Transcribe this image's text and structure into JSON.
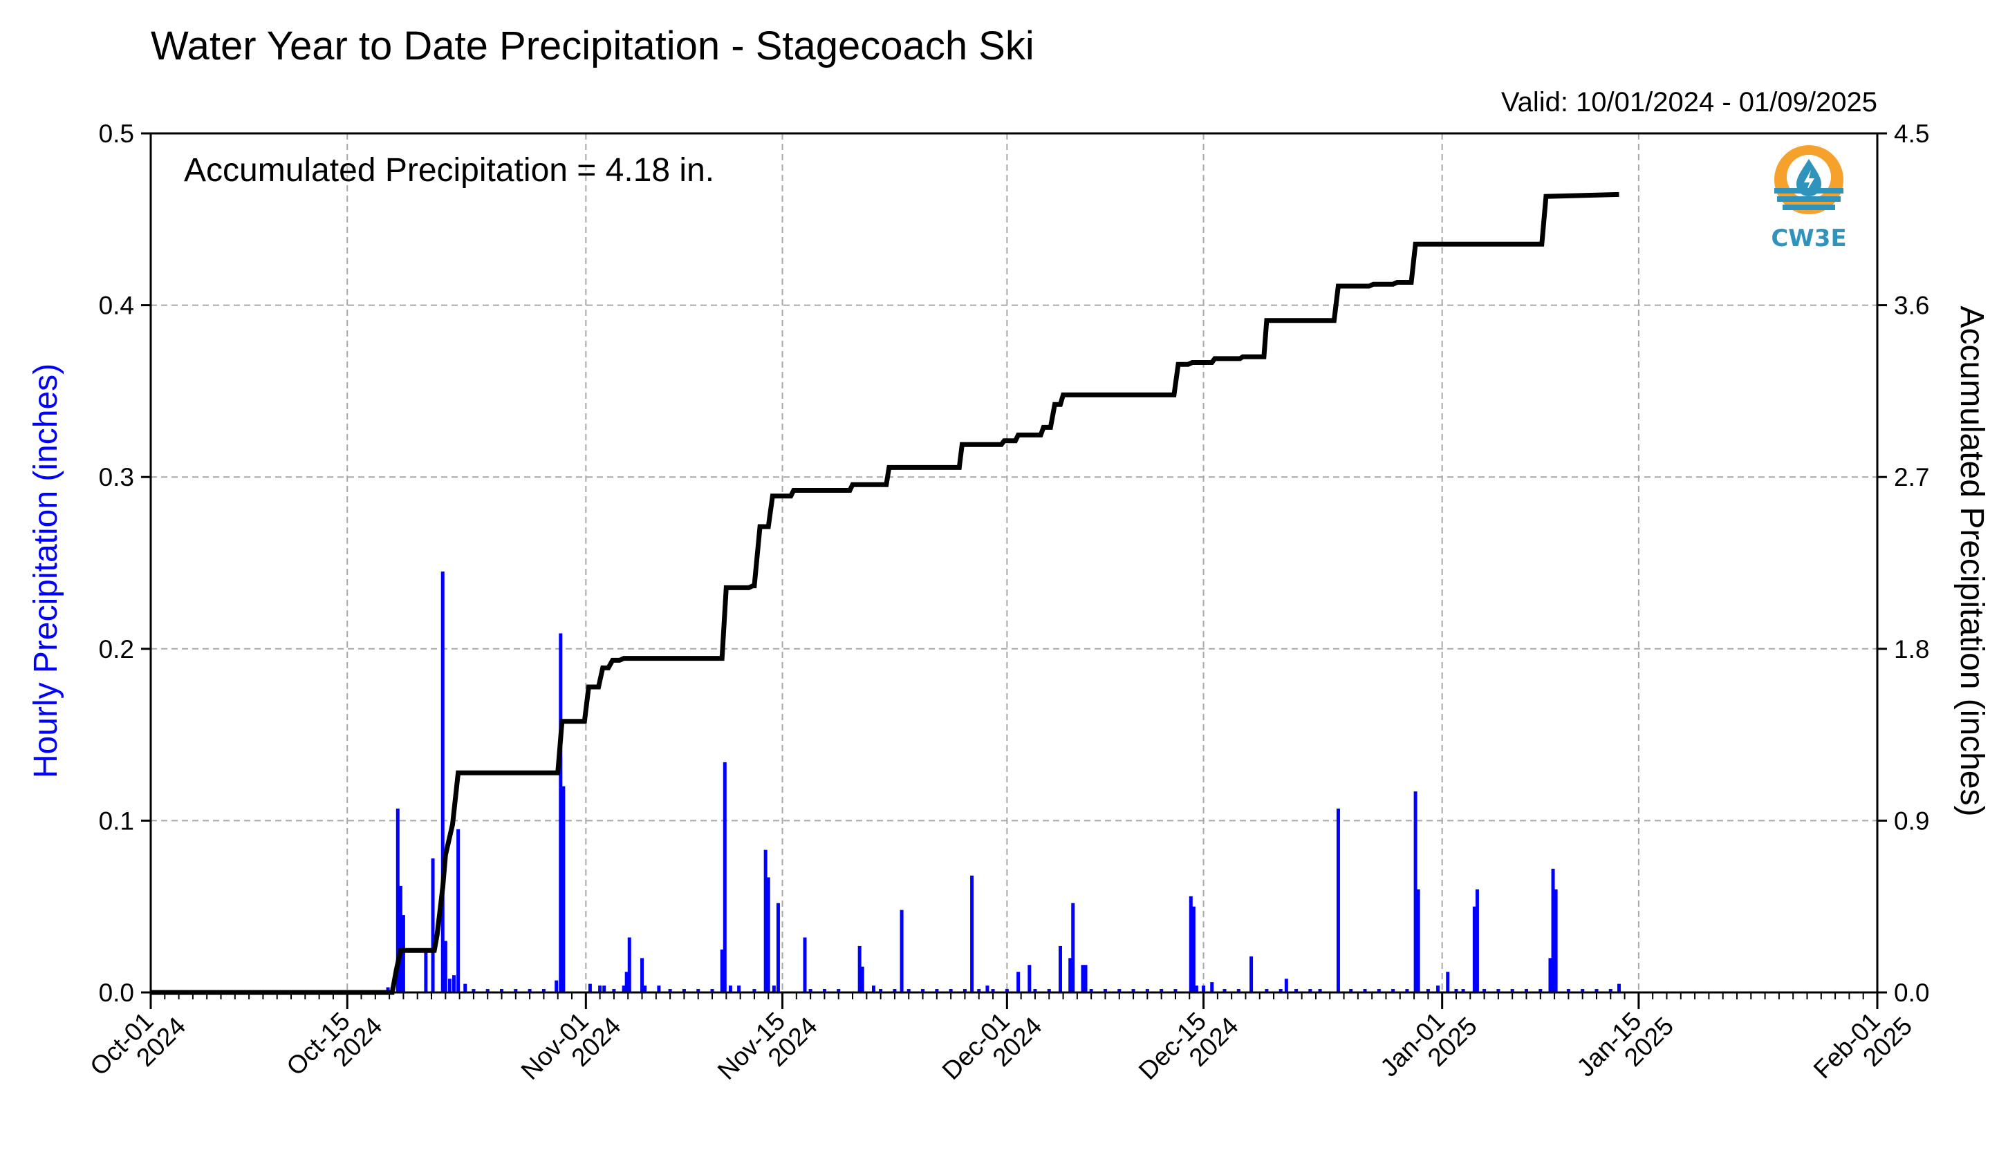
{
  "chart_data": {
    "type": "bar",
    "title": "Water Year to Date Precipitation - Stagecoach Ski",
    "valid_text": "Valid: 10/01/2024 - 01/09/2025",
    "annotation": "Accumulated Precipitation = 4.18 in.",
    "ylabel_left": "Hourly Precipitation (inches)",
    "ylabel_right": "Accumulated Precipitation (inches)",
    "y_left_lim": [
      0,
      0.5
    ],
    "y_left_ticks": [
      "0.0",
      "0.1",
      "0.2",
      "0.3",
      "0.4",
      "0.5"
    ],
    "y_right_lim": [
      0,
      4.5
    ],
    "y_right_ticks": [
      "0.0",
      "0.9",
      "1.8",
      "2.7",
      "3.6",
      "4.5"
    ],
    "x_range_days": [
      0,
      123
    ],
    "x_ticks": [
      {
        "day": 0,
        "line1": "Oct-01",
        "line2": "2024"
      },
      {
        "day": 14,
        "line1": "Oct-15",
        "line2": "2024"
      },
      {
        "day": 31,
        "line1": "Nov-01",
        "line2": "2024"
      },
      {
        "day": 45,
        "line1": "Nov-15",
        "line2": "2024"
      },
      {
        "day": 61,
        "line1": "Dec-01",
        "line2": "2024"
      },
      {
        "day": 75,
        "line1": "Dec-15",
        "line2": "2024"
      },
      {
        "day": 92,
        "line1": "Jan-01",
        "line2": "2025"
      },
      {
        "day": 106,
        "line1": "Jan-15",
        "line2": "2025"
      },
      {
        "day": 123,
        "line1": "Feb-01",
        "line2": "2025"
      }
    ],
    "grid": true,
    "series": [
      {
        "name": "Hourly Precipitation",
        "color": "#0000ff",
        "type": "bar",
        "points": [
          [
            16.9,
            0.003
          ],
          [
            17.2,
            0.003
          ],
          [
            17.6,
            0.107
          ],
          [
            17.8,
            0.062
          ],
          [
            18.0,
            0.045
          ],
          [
            19.6,
            0.025
          ],
          [
            20.1,
            0.078
          ],
          [
            20.8,
            0.245
          ],
          [
            21.0,
            0.03
          ],
          [
            21.3,
            0.008
          ],
          [
            21.6,
            0.01
          ],
          [
            21.9,
            0.095
          ],
          [
            22.4,
            0.005
          ],
          [
            23.0,
            0.002
          ],
          [
            24.0,
            0.002
          ],
          [
            25.0,
            0.002
          ],
          [
            26.0,
            0.002
          ],
          [
            27.0,
            0.002
          ],
          [
            28.0,
            0.002
          ],
          [
            28.9,
            0.007
          ],
          [
            29.2,
            0.209
          ],
          [
            29.4,
            0.12
          ],
          [
            31.3,
            0.005
          ],
          [
            32.0,
            0.004
          ],
          [
            32.3,
            0.004
          ],
          [
            33.0,
            0.002
          ],
          [
            33.7,
            0.004
          ],
          [
            33.9,
            0.012
          ],
          [
            34.1,
            0.032
          ],
          [
            35.0,
            0.02
          ],
          [
            35.2,
            0.004
          ],
          [
            36.2,
            0.004
          ],
          [
            37.0,
            0.002
          ],
          [
            38.0,
            0.002
          ],
          [
            39.0,
            0.002
          ],
          [
            40.0,
            0.002
          ],
          [
            40.7,
            0.025
          ],
          [
            40.9,
            0.134
          ],
          [
            41.3,
            0.004
          ],
          [
            41.9,
            0.004
          ],
          [
            43.0,
            0.002
          ],
          [
            43.8,
            0.083
          ],
          [
            44.0,
            0.067
          ],
          [
            44.4,
            0.004
          ],
          [
            44.7,
            0.052
          ],
          [
            46.6,
            0.032
          ],
          [
            47.0,
            0.002
          ],
          [
            48.0,
            0.002
          ],
          [
            49.0,
            0.002
          ],
          [
            50.5,
            0.027
          ],
          [
            50.7,
            0.015
          ],
          [
            51.5,
            0.004
          ],
          [
            52.0,
            0.002
          ],
          [
            53.0,
            0.002
          ],
          [
            53.5,
            0.048
          ],
          [
            54.0,
            0.002
          ],
          [
            55.0,
            0.002
          ],
          [
            56.0,
            0.002
          ],
          [
            57.0,
            0.002
          ],
          [
            58.0,
            0.002
          ],
          [
            58.5,
            0.068
          ],
          [
            59.0,
            0.002
          ],
          [
            59.6,
            0.004
          ],
          [
            60.0,
            0.002
          ],
          [
            61.0,
            0.002
          ],
          [
            61.8,
            0.012
          ],
          [
            62.6,
            0.016
          ],
          [
            63.0,
            0.002
          ],
          [
            64.0,
            0.002
          ],
          [
            64.8,
            0.027
          ],
          [
            65.5,
            0.02
          ],
          [
            65.7,
            0.052
          ],
          [
            66.4,
            0.016
          ],
          [
            66.6,
            0.016
          ],
          [
            67.0,
            0.002
          ],
          [
            68.0,
            0.002
          ],
          [
            69.0,
            0.002
          ],
          [
            70.0,
            0.002
          ],
          [
            71.0,
            0.002
          ],
          [
            72.0,
            0.002
          ],
          [
            73.0,
            0.002
          ],
          [
            74.1,
            0.056
          ],
          [
            74.3,
            0.05
          ],
          [
            74.5,
            0.004
          ],
          [
            75.0,
            0.004
          ],
          [
            75.6,
            0.006
          ],
          [
            76.5,
            0.002
          ],
          [
            77.5,
            0.002
          ],
          [
            78.4,
            0.021
          ],
          [
            79.5,
            0.002
          ],
          [
            80.5,
            0.002
          ],
          [
            80.9,
            0.008
          ],
          [
            81.6,
            0.002
          ],
          [
            82.6,
            0.002
          ],
          [
            83.3,
            0.002
          ],
          [
            84.6,
            0.107
          ],
          [
            85.5,
            0.002
          ],
          [
            86.5,
            0.002
          ],
          [
            87.5,
            0.002
          ],
          [
            88.5,
            0.002
          ],
          [
            89.5,
            0.002
          ],
          [
            90.1,
            0.117
          ],
          [
            90.3,
            0.06
          ],
          [
            91.0,
            0.002
          ],
          [
            91.7,
            0.004
          ],
          [
            92.4,
            0.012
          ],
          [
            93.0,
            0.002
          ],
          [
            93.5,
            0.002
          ],
          [
            94.3,
            0.05
          ],
          [
            94.5,
            0.06
          ],
          [
            95.0,
            0.002
          ],
          [
            96.0,
            0.002
          ],
          [
            97.0,
            0.002
          ],
          [
            98.0,
            0.002
          ],
          [
            99.0,
            0.002
          ],
          [
            99.7,
            0.02
          ],
          [
            99.9,
            0.072
          ],
          [
            100.1,
            0.06
          ],
          [
            101.0,
            0.002
          ],
          [
            102.0,
            0.002
          ],
          [
            103.0,
            0.002
          ],
          [
            104.0,
            0.002
          ],
          [
            104.6,
            0.005
          ]
        ]
      },
      {
        "name": "Accumulated Precipitation",
        "color": "#000000",
        "type": "line",
        "steps": [
          [
            0,
            0.0
          ],
          [
            17.2,
            0.0
          ],
          [
            17.5,
            0.12
          ],
          [
            17.8,
            0.22
          ],
          [
            20.2,
            0.22
          ],
          [
            20.4,
            0.3
          ],
          [
            20.8,
            0.55
          ],
          [
            21.0,
            0.72
          ],
          [
            21.5,
            0.88
          ],
          [
            21.9,
            1.15
          ],
          [
            29.0,
            1.15
          ],
          [
            29.3,
            1.42
          ],
          [
            30.9,
            1.42
          ],
          [
            31.2,
            1.6
          ],
          [
            31.9,
            1.6
          ],
          [
            32.2,
            1.7
          ],
          [
            32.6,
            1.7
          ],
          [
            32.9,
            1.74
          ],
          [
            33.4,
            1.74
          ],
          [
            33.7,
            1.75
          ],
          [
            40.7,
            1.75
          ],
          [
            41.0,
            2.12
          ],
          [
            42.6,
            2.12
          ],
          [
            42.9,
            2.13
          ],
          [
            43.0,
            2.13
          ],
          [
            43.4,
            2.44
          ],
          [
            44.0,
            2.44
          ],
          [
            44.3,
            2.6
          ],
          [
            45.6,
            2.6
          ],
          [
            45.8,
            2.63
          ],
          [
            49.8,
            2.63
          ],
          [
            50.0,
            2.66
          ],
          [
            52.4,
            2.66
          ],
          [
            52.6,
            2.75
          ],
          [
            57.6,
            2.75
          ],
          [
            57.8,
            2.87
          ],
          [
            60.6,
            2.87
          ],
          [
            60.8,
            2.89
          ],
          [
            61.6,
            2.89
          ],
          [
            61.8,
            2.92
          ],
          [
            63.4,
            2.92
          ],
          [
            63.6,
            2.96
          ],
          [
            64.1,
            2.96
          ],
          [
            64.4,
            3.08
          ],
          [
            64.8,
            3.08
          ],
          [
            65.0,
            3.13
          ],
          [
            72.9,
            3.13
          ],
          [
            73.2,
            3.29
          ],
          [
            73.9,
            3.29
          ],
          [
            74.2,
            3.3
          ],
          [
            75.6,
            3.3
          ],
          [
            75.8,
            3.32
          ],
          [
            77.6,
            3.32
          ],
          [
            77.8,
            3.33
          ],
          [
            79.3,
            3.33
          ],
          [
            79.5,
            3.52
          ],
          [
            84.3,
            3.52
          ],
          [
            84.6,
            3.7
          ],
          [
            86.8,
            3.7
          ],
          [
            87.1,
            3.71
          ],
          [
            88.5,
            3.71
          ],
          [
            88.8,
            3.72
          ],
          [
            89.8,
            3.72
          ],
          [
            90.1,
            3.92
          ],
          [
            99.1,
            3.92
          ],
          [
            99.4,
            4.17
          ],
          [
            104.6,
            4.18
          ]
        ]
      }
    ]
  },
  "logo": {
    "text": "CW3E",
    "colors": {
      "orange": "#f5a12b",
      "blue": "#2f93bb"
    }
  }
}
